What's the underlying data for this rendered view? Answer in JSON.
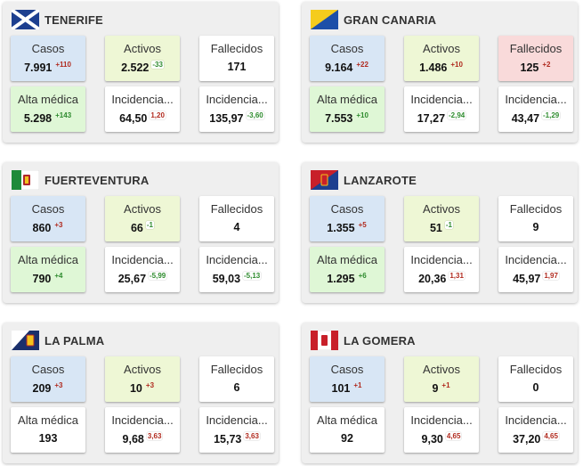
{
  "labels": {
    "casos": "Casos",
    "activos": "Activos",
    "fallecidos": "Fallecidos",
    "alta": "Alta médica",
    "incid1": "Incidencia...",
    "incid2": "Incidencia..."
  },
  "islands": [
    {
      "name": "TENERIFE",
      "flag_icon": "tenerife-flag-icon",
      "casos": {
        "value": "7.991",
        "delta": "+110"
      },
      "activos": {
        "value": "2.522",
        "delta": "-33"
      },
      "fallecidos": {
        "value": "171",
        "delta": ""
      },
      "alta": {
        "value": "5.298",
        "delta": "+143"
      },
      "incid1": {
        "value": "64,50",
        "delta": "1,20"
      },
      "incid2": {
        "value": "135,97",
        "delta": "-3,60"
      }
    },
    {
      "name": "GRAN CANARIA",
      "flag_icon": "gran-canaria-flag-icon",
      "casos": {
        "value": "9.164",
        "delta": "+22"
      },
      "activos": {
        "value": "1.486",
        "delta": "+10"
      },
      "fallecidos": {
        "value": "125",
        "delta": "+2"
      },
      "alta": {
        "value": "7.553",
        "delta": "+10"
      },
      "incid1": {
        "value": "17,27",
        "delta": "-2,94"
      },
      "incid2": {
        "value": "43,47",
        "delta": "-1,29"
      }
    },
    {
      "name": "FUERTEVENTURA",
      "flag_icon": "fuerteventura-flag-icon",
      "casos": {
        "value": "860",
        "delta": "+3"
      },
      "activos": {
        "value": "66",
        "delta": "-1"
      },
      "fallecidos": {
        "value": "4",
        "delta": ""
      },
      "alta": {
        "value": "790",
        "delta": "+4"
      },
      "incid1": {
        "value": "25,67",
        "delta": "-5,99"
      },
      "incid2": {
        "value": "59,03",
        "delta": "-5,13"
      }
    },
    {
      "name": "LANZAROTE",
      "flag_icon": "lanzarote-flag-icon",
      "casos": {
        "value": "1.355",
        "delta": "+5"
      },
      "activos": {
        "value": "51",
        "delta": "-1"
      },
      "fallecidos": {
        "value": "9",
        "delta": ""
      },
      "alta": {
        "value": "1.295",
        "delta": "+6"
      },
      "incid1": {
        "value": "20,36",
        "delta": "1,31"
      },
      "incid2": {
        "value": "45,97",
        "delta": "1,97"
      }
    },
    {
      "name": "LA PALMA",
      "flag_icon": "la-palma-flag-icon",
      "casos": {
        "value": "209",
        "delta": "+3"
      },
      "activos": {
        "value": "10",
        "delta": "+3"
      },
      "fallecidos": {
        "value": "6",
        "delta": ""
      },
      "alta": {
        "value": "193",
        "delta": ""
      },
      "incid1": {
        "value": "9,68",
        "delta": "3,63"
      },
      "incid2": {
        "value": "15,73",
        "delta": "3,63"
      }
    },
    {
      "name": "LA GOMERA",
      "flag_icon": "la-gomera-flag-icon",
      "casos": {
        "value": "101",
        "delta": "+1"
      },
      "activos": {
        "value": "9",
        "delta": "+1"
      },
      "fallecidos": {
        "value": "0",
        "delta": ""
      },
      "alta": {
        "value": "92",
        "delta": ""
      },
      "incid1": {
        "value": "9,30",
        "delta": "4,65"
      },
      "incid2": {
        "value": "37,20",
        "delta": "4,65"
      }
    }
  ],
  "colors": {
    "casos_bg": "#d8e6f5",
    "activos_bg": "#eef7d5",
    "alta_bg": "#dff7d6",
    "fallecidos_alert_bg": "#f9dada",
    "delta_up": "#b02a1e",
    "delta_down": "#2e8b2e"
  }
}
